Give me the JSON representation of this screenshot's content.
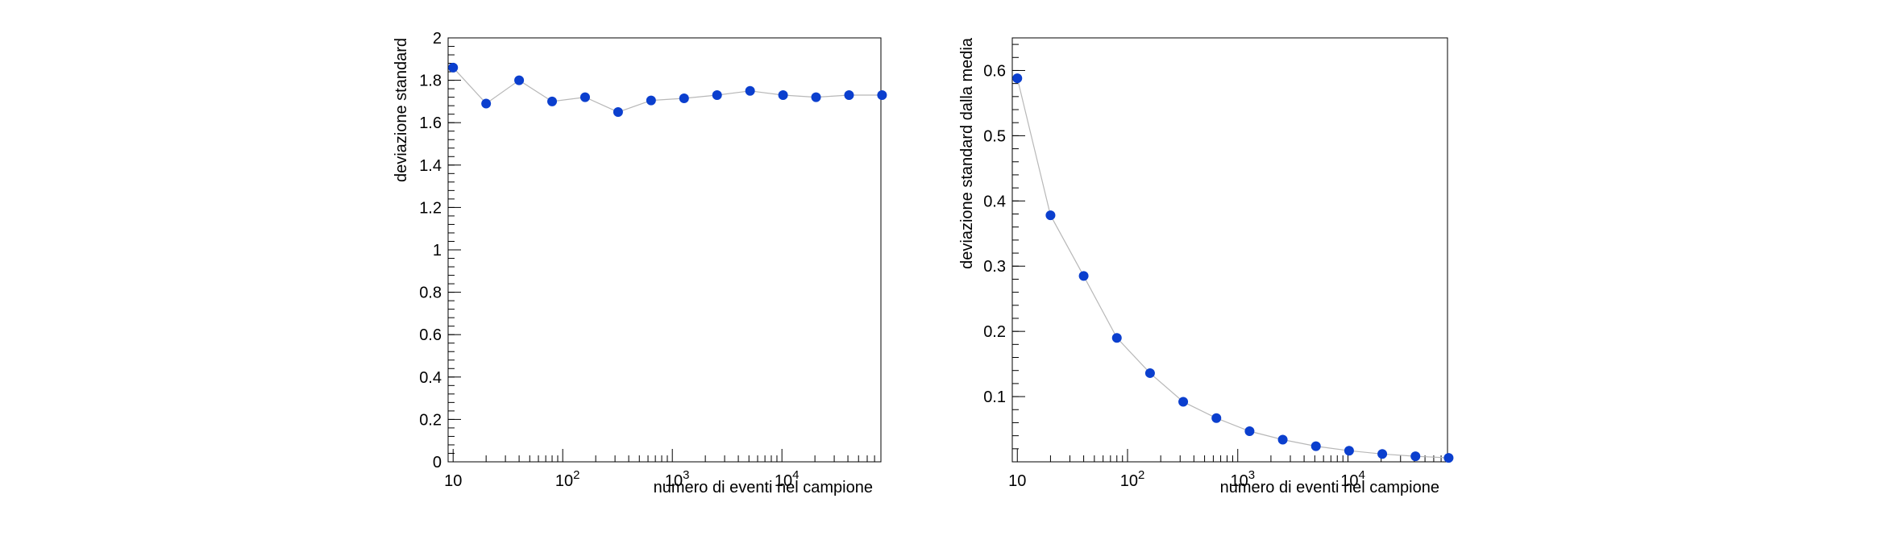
{
  "chart_data": [
    {
      "type": "line",
      "title": "",
      "xlabel": "numero di eventi nel campione",
      "ylabel": "deviazione standard",
      "xscale": "log",
      "xlim": [
        9,
        80000
      ],
      "ylim": [
        0,
        2
      ],
      "y_ticks": [
        0,
        0.2,
        0.4,
        0.6,
        0.8,
        1,
        1.2,
        1.4,
        1.6,
        1.8,
        2
      ],
      "y_tick_labels": [
        "0",
        "0.2",
        "0.4",
        "0.6",
        "0.8",
        "1",
        "1.2",
        "1.4",
        "1.6",
        "1.8",
        "2"
      ],
      "x_tick_labels": [
        {
          "value": 10,
          "base": "10",
          "exp": ""
        },
        {
          "value": 100,
          "base": "10",
          "exp": "2"
        },
        {
          "value": 1000,
          "base": "10",
          "exp": "3"
        },
        {
          "value": 10000,
          "base": "10",
          "exp": "4"
        }
      ],
      "grid": false,
      "series": [
        {
          "color": "#0b3fce",
          "x": [
            10,
            20,
            40,
            80,
            160,
            320,
            640,
            1280,
            2560,
            5120,
            10240,
            20480,
            40960,
            81920
          ],
          "y": [
            1.86,
            1.69,
            1.8,
            1.7,
            1.72,
            1.65,
            1.705,
            1.715,
            1.73,
            1.75,
            1.73,
            1.72,
            1.73,
            1.73
          ]
        }
      ]
    },
    {
      "type": "line",
      "title": "",
      "xlabel": "numero di eventi nel campione",
      "ylabel": "deviazione standard dalla media",
      "xscale": "log",
      "xlim": [
        9,
        80000
      ],
      "ylim": [
        0,
        0.65
      ],
      "y_ticks": [
        0.1,
        0.2,
        0.3,
        0.4,
        0.5,
        0.6
      ],
      "y_tick_labels": [
        "0.1",
        "0.2",
        "0.3",
        "0.4",
        "0.5",
        "0.6"
      ],
      "x_tick_labels": [
        {
          "value": 10,
          "base": "10",
          "exp": ""
        },
        {
          "value": 100,
          "base": "10",
          "exp": "2"
        },
        {
          "value": 1000,
          "base": "10",
          "exp": "3"
        },
        {
          "value": 10000,
          "base": "10",
          "exp": "4"
        }
      ],
      "grid": false,
      "series": [
        {
          "color": "#0b3fce",
          "x": [
            10,
            20,
            40,
            80,
            160,
            320,
            640,
            1280,
            2560,
            5120,
            10240,
            20480,
            40960,
            81920
          ],
          "y": [
            0.588,
            0.378,
            0.285,
            0.19,
            0.136,
            0.092,
            0.067,
            0.047,
            0.034,
            0.024,
            0.017,
            0.012,
            0.0085,
            0.006
          ]
        }
      ]
    }
  ]
}
